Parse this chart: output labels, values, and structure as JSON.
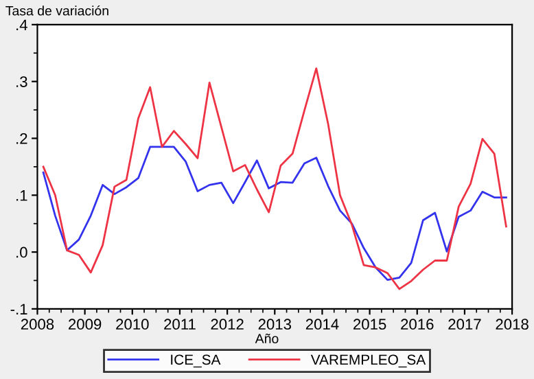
{
  "chart_data": {
    "type": "line",
    "ylabel": "Tasa de variación",
    "xlabel": "Año",
    "x": [
      2008.125,
      2008.375,
      2008.625,
      2008.875,
      2009.125,
      2009.375,
      2009.625,
      2009.875,
      2010.125,
      2010.375,
      2010.625,
      2010.875,
      2011.125,
      2011.375,
      2011.625,
      2011.875,
      2012.125,
      2012.375,
      2012.625,
      2012.875,
      2013.125,
      2013.375,
      2013.625,
      2013.875,
      2014.125,
      2014.375,
      2014.625,
      2014.875,
      2015.125,
      2015.375,
      2015.625,
      2015.875,
      2016.125,
      2016.375,
      2016.625,
      2016.875,
      2017.125,
      2017.375,
      2017.625,
      2017.875
    ],
    "series": [
      {
        "name": "ICE_SA",
        "color": "#3333ee",
        "values": [
          0.14,
          0.064,
          0.003,
          0.022,
          0.064,
          0.118,
          0.102,
          0.114,
          0.13,
          0.185,
          0.185,
          0.185,
          0.159,
          0.107,
          0.118,
          0.122,
          0.086,
          0.123,
          0.161,
          0.112,
          0.123,
          0.122,
          0.156,
          0.166,
          0.116,
          0.073,
          0.05,
          0.007,
          -0.027,
          -0.049,
          -0.045,
          -0.019,
          0.056,
          0.069,
          0.001,
          0.062,
          0.073,
          0.106,
          0.096,
          0.096
        ]
      },
      {
        "name": "VAREMPLEO_SA",
        "color": "#ee3344",
        "values": [
          0.15,
          0.1,
          0.003,
          -0.005,
          -0.036,
          0.012,
          0.115,
          0.127,
          0.235,
          0.29,
          0.185,
          0.213,
          0.19,
          0.165,
          0.298,
          0.22,
          0.142,
          0.153,
          0.11,
          0.07,
          0.152,
          0.173,
          0.249,
          0.323,
          0.225,
          0.1,
          0.048,
          -0.023,
          -0.027,
          -0.037,
          -0.065,
          -0.051,
          -0.031,
          -0.015,
          -0.015,
          0.08,
          0.12,
          0.199,
          0.173,
          0.045
        ]
      }
    ],
    "xlim": [
      2008,
      2018
    ],
    "xticks": [
      2008,
      2009,
      2010,
      2011,
      2012,
      2013,
      2014,
      2015,
      2016,
      2017,
      2018
    ],
    "ylim": [
      -0.1,
      0.4
    ],
    "yticks": [
      {
        "value": -0.1,
        "label": "-.1"
      },
      {
        "value": 0,
        "label": ".0"
      },
      {
        "value": 0.1,
        "label": ".1"
      },
      {
        "value": 0.2,
        "label": ".2"
      },
      {
        "value": 0.3,
        "label": ".3"
      },
      {
        "value": 0.4,
        "label": ".4"
      }
    ],
    "grid": false,
    "legend": "bottom",
    "marker": "none",
    "line_style": "solid"
  }
}
